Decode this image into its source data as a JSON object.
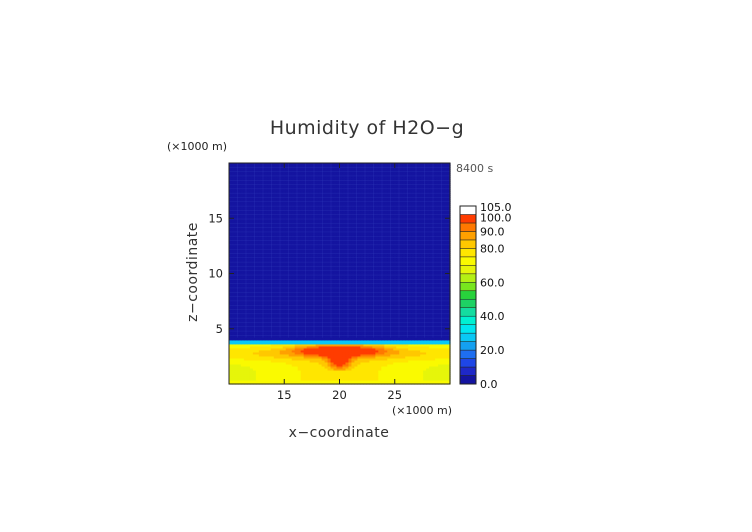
{
  "chart_data": {
    "type": "heatmap",
    "title": "Humidity of H2O−g",
    "time_label": "8400 s",
    "xlabel": "x−coordinate",
    "ylabel": "z−coordinate",
    "x_unit": "(×1000 m)",
    "y_unit": "(×1000 m)",
    "xlim": [
      10,
      30
    ],
    "ylim": [
      0,
      20
    ],
    "x_ticks": [
      {
        "value": 15,
        "label": "15"
      },
      {
        "value": 20,
        "label": "20"
      },
      {
        "value": 25,
        "label": "25"
      }
    ],
    "y_ticks": [
      {
        "value": 5,
        "label": "5"
      },
      {
        "value": 10,
        "label": "10"
      },
      {
        "value": 15,
        "label": "15"
      }
    ],
    "colorbar": {
      "min": 0,
      "max": 105,
      "levels": [
        {
          "lo": 0,
          "hi": 5,
          "color": "#1414a0"
        },
        {
          "lo": 5,
          "hi": 10,
          "color": "#1e28c8"
        },
        {
          "lo": 10,
          "hi": 15,
          "color": "#1e46e6"
        },
        {
          "lo": 15,
          "hi": 20,
          "color": "#1e6ef0"
        },
        {
          "lo": 20,
          "hi": 25,
          "color": "#14a0f0"
        },
        {
          "lo": 25,
          "hi": 30,
          "color": "#0ac8f5"
        },
        {
          "lo": 30,
          "hi": 35,
          "color": "#00e6f0"
        },
        {
          "lo": 35,
          "hi": 40,
          "color": "#00f0d2"
        },
        {
          "lo": 40,
          "hi": 45,
          "color": "#14dca0"
        },
        {
          "lo": 45,
          "hi": 50,
          "color": "#1ed264"
        },
        {
          "lo": 50,
          "hi": 55,
          "color": "#28d23c"
        },
        {
          "lo": 55,
          "hi": 60,
          "color": "#78e61e"
        },
        {
          "lo": 60,
          "hi": 65,
          "color": "#b4f014"
        },
        {
          "lo": 65,
          "hi": 70,
          "color": "#e6f50a"
        },
        {
          "lo": 70,
          "hi": 75,
          "color": "#fafa00"
        },
        {
          "lo": 75,
          "hi": 80,
          "color": "#ffe600"
        },
        {
          "lo": 80,
          "hi": 85,
          "color": "#ffc800"
        },
        {
          "lo": 85,
          "hi": 90,
          "color": "#ffa000"
        },
        {
          "lo": 90,
          "hi": 95,
          "color": "#ff7800"
        },
        {
          "lo": 95,
          "hi": 100,
          "color": "#ff3c00"
        },
        {
          "lo": 100,
          "hi": 105,
          "color": "#ffffff"
        }
      ],
      "labels": [
        {
          "value": 0,
          "label": "0.0"
        },
        {
          "value": 20,
          "label": "20.0"
        },
        {
          "value": 40,
          "label": "40.0"
        },
        {
          "value": 60,
          "label": "60.0"
        },
        {
          "value": 80,
          "label": "80.0"
        },
        {
          "value": 90,
          "label": "90.0"
        },
        {
          "value": 100,
          "label": "100.0"
        },
        {
          "value": 105,
          "label": "105.0"
        }
      ]
    },
    "field_description": "very dry above z≈4 km; moist boundary layer below with a saturated (~95–100%) core centred near x=20 at z≈3"
  }
}
